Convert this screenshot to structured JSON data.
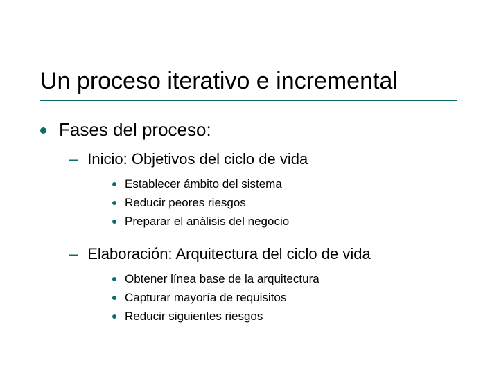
{
  "slide": {
    "title": "Un proceso iterativo e incremental",
    "title_color": "#000000",
    "title_fontsize": 34,
    "underline_color": "#0d6c6c",
    "background_color": "#ffffff",
    "bullet_color": "#0d6c6c",
    "l1_fontsize": 26,
    "l2_fontsize": 22,
    "l3_fontsize": 17,
    "content": {
      "heading": "Fases del proceso:",
      "sections": [
        {
          "title": "Inicio: Objetivos del ciclo de vida",
          "items": [
            "Establecer ámbito del sistema",
            "Reducir peores riesgos",
            "Preparar el análisis del negocio"
          ]
        },
        {
          "title": "Elaboración: Arquitectura del ciclo de vida",
          "items": [
            "Obtener línea base de la arquitectura",
            "Capturar mayoría de requisitos",
            "Reducir siguientes riesgos"
          ]
        }
      ]
    }
  }
}
